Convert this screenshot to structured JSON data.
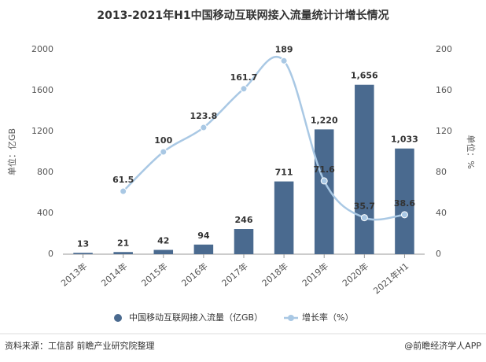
{
  "chart_data": {
    "type": "bar-line",
    "title": "2013-2021年H1中国移动互联网接入流量统计计增长情况",
    "categories": [
      "2013年",
      "2014年",
      "2015年",
      "2016年",
      "2017年",
      "2018年",
      "2019年",
      "2020年",
      "2021年H1"
    ],
    "series": [
      {
        "name": "中国移动互联网接入流量（亿GB）",
        "type": "bar",
        "color": "#4a6a8f",
        "values": [
          13,
          21,
          42,
          94,
          246,
          711,
          1220,
          1656,
          1033
        ],
        "value_labels": [
          "13",
          "21",
          "42",
          "94",
          "246",
          "711",
          "1,220",
          "1,656",
          "1,033"
        ]
      },
      {
        "name": "增长率（%）",
        "type": "line",
        "axis": "y2",
        "color": "#a9c8e4",
        "values": [
          null,
          61.5,
          100,
          123.8,
          161.7,
          189,
          71.6,
          35.7,
          38.6
        ]
      }
    ],
    "ylabel": "单位：亿GB",
    "y2label": "单位：%",
    "ylim": [
      0,
      2000
    ],
    "yticks": [
      0,
      400,
      800,
      1200,
      1600,
      2000
    ],
    "y2lim": [
      0,
      200
    ],
    "y2ticks": [
      0,
      40,
      80,
      120,
      160,
      200
    ],
    "legend": "bottom",
    "source": "资料来源：工信部 前瞻产业研究院整理",
    "credit": "@前瞻经济学人APP"
  }
}
